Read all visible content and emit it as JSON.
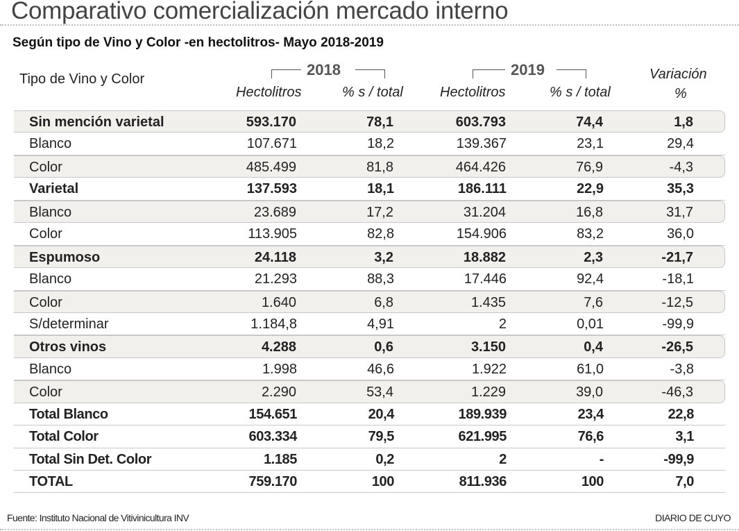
{
  "title": "Comparativo comercialización mercado interno",
  "subtitle": "Según tipo de Vino y Color -en hectolitros- Mayo 2018-2019",
  "source": "Fuente: Instituto Nacional de Vitivinicultura INV",
  "brand": "DIARIO DE CUYO",
  "chart_data": {
    "type": "table",
    "header": {
      "label": "Tipo de Vino y Color",
      "year1": "2018",
      "year2": "2019",
      "hecto": "Hectolitros",
      "pct": "% s / total",
      "var1": "Variación",
      "var2": "%"
    },
    "columns": [
      "Tipo de Vino y Color",
      "2018 Hectolitros",
      "2018 % s / total",
      "2019 Hectolitros",
      "2019 % s / total",
      "Variación %"
    ],
    "rows": [
      {
        "style": "bold",
        "cells": [
          "Sin mención varietal",
          "593.170",
          "78,1",
          "603.793",
          "74,4",
          "1,8"
        ]
      },
      {
        "style": "",
        "cells": [
          "Blanco",
          "107.671",
          "18,2",
          "139.367",
          "23,1",
          "29,4"
        ]
      },
      {
        "style": "",
        "cells": [
          "Color",
          "485.499",
          "81,8",
          "464.426",
          "76,9",
          "-4,3"
        ]
      },
      {
        "style": "bold",
        "cells": [
          "Varietal",
          "137.593",
          "18,1",
          "186.111",
          "22,9",
          "35,3"
        ]
      },
      {
        "style": "",
        "cells": [
          "Blanco",
          "23.689",
          "17,2",
          "31.204",
          "16,8",
          "31,7"
        ]
      },
      {
        "style": "",
        "cells": [
          "Color",
          "113.905",
          "82,8",
          "154.906",
          "83,2",
          "36,0"
        ]
      },
      {
        "style": "bold",
        "cells": [
          "Espumoso",
          "24.118",
          "3,2",
          "18.882",
          "2,3",
          "-21,7"
        ]
      },
      {
        "style": "",
        "cells": [
          "Blanco",
          "21.293",
          "88,3",
          "17.446",
          "92,4",
          "-18,1"
        ]
      },
      {
        "style": "",
        "cells": [
          "Color",
          "1.640",
          "6,8",
          "1.435",
          "7,6",
          "-12,5"
        ]
      },
      {
        "style": "",
        "cells": [
          "S/determinar",
          "1.184,8",
          "4,91",
          "2",
          "0,01",
          "-99,9"
        ]
      },
      {
        "style": "bold",
        "cells": [
          "Otros vinos",
          "4.288",
          "0,6",
          "3.150",
          "0,4",
          "-26,5"
        ]
      },
      {
        "style": "",
        "cells": [
          "Blanco",
          "1.998",
          "46,6",
          "1.922",
          "61,0",
          "-3,8"
        ]
      },
      {
        "style": "",
        "cells": [
          "Color",
          "2.290",
          "53,4",
          "1.229",
          "39,0",
          "-46,3"
        ]
      },
      {
        "style": "total",
        "cells": [
          "Total Blanco",
          "154.651",
          "20,4",
          "189.939",
          "23,4",
          "22,8"
        ]
      },
      {
        "style": "total",
        "cells": [
          "Total Color",
          "603.334",
          "79,5",
          "621.995",
          "76,6",
          "3,1"
        ]
      },
      {
        "style": "total",
        "cells": [
          "Total Sin Det. Color",
          "1.185",
          "0,2",
          "2",
          "-",
          "-99,9"
        ]
      },
      {
        "style": "total",
        "cells": [
          "TOTAL",
          "759.170",
          "100",
          "811.936",
          "100",
          "7,0"
        ]
      }
    ]
  }
}
